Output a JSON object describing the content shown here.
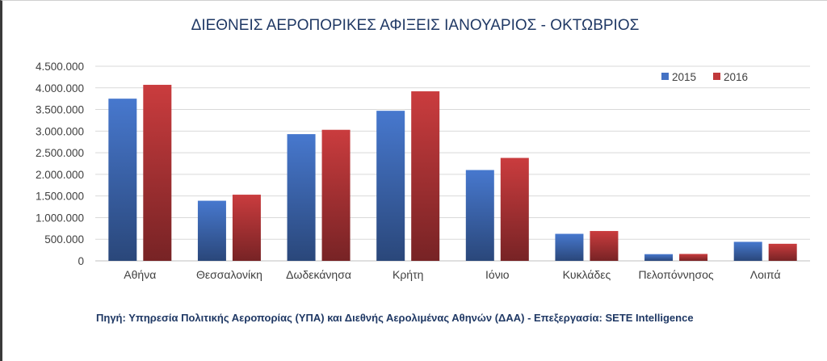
{
  "chart_data": {
    "type": "bar",
    "title": "ΔΙΕΘΝΕΙΣ ΑΕΡΟΠΟΡΙΚΕΣ ΑΦΙΞΕΙΣ ΙΑΝΟΥΑΡΙΟΣ - ΟΚΤΩΒΡΙΟΣ",
    "categories": [
      "Αθήνα",
      "Θεσσαλονίκη",
      "Δωδεκάνησα",
      "Κρήτη",
      "Ιόνιο",
      "Κυκλάδες",
      "Πελοπόννησος",
      "Λοιπά"
    ],
    "series": [
      {
        "name": "2015",
        "color": "#4472c4",
        "values": [
          3750000,
          1390000,
          2930000,
          3470000,
          2100000,
          625000,
          155000,
          440000
        ]
      },
      {
        "name": "2016",
        "color": "#c0393b",
        "values": [
          4070000,
          1530000,
          3030000,
          3920000,
          2380000,
          690000,
          160000,
          395000
        ]
      }
    ],
    "ylim": [
      0,
      4500000
    ],
    "yticks": [
      "0",
      "500.000",
      "1.000.000",
      "1.500.000",
      "2.000.000",
      "2.500.000",
      "3.000.000",
      "3.500.000",
      "4.000.000",
      "4.500.000"
    ],
    "grid": true,
    "legend": "top-right",
    "source": "Πηγή: Υπηρεσία Πολιτικής Αεροπορίας (ΥΠΑ)  και Διεθνής  Αερολιμένας Αθηνών (ΔΑΑ) - Επεξεργασία: SETE Intelligence"
  }
}
